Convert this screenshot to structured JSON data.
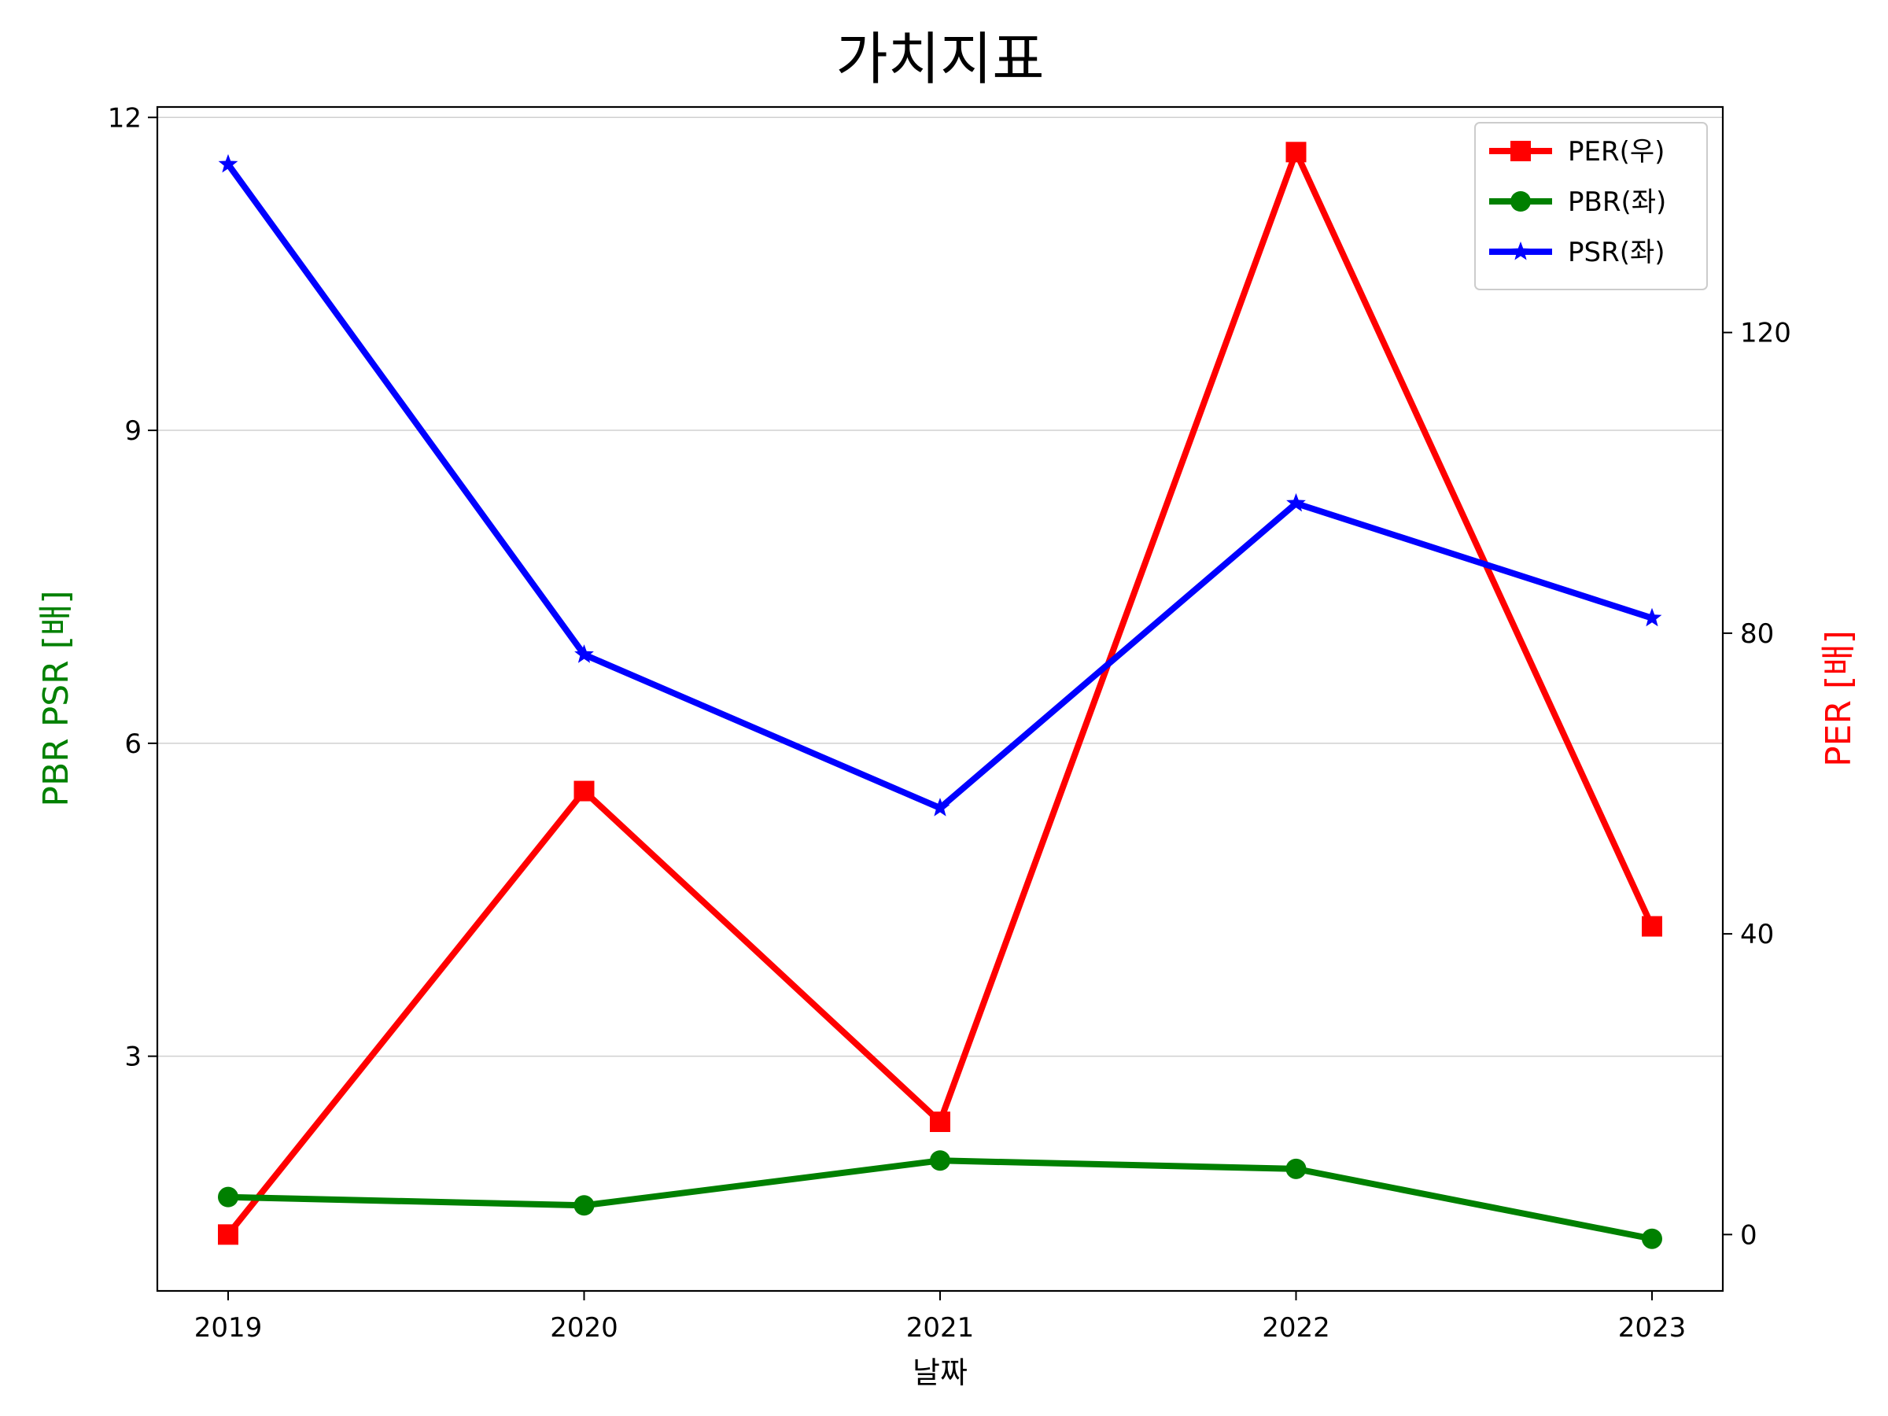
{
  "chart_data": {
    "type": "line",
    "title": "가치지표",
    "xlabel": "날짜",
    "ylabel_left": "PBR PSR [배]",
    "ylabel_right": "PER [배]",
    "categories": [
      "2019",
      "2020",
      "2021",
      "2022",
      "2023"
    ],
    "left_axis": {
      "ylim": [
        0.75,
        12.1
      ],
      "ticks": [
        3,
        6,
        9,
        12
      ],
      "color": "#008000"
    },
    "right_axis": {
      "ylim": [
        -7.5,
        150
      ],
      "ticks": [
        0,
        40,
        80,
        120
      ],
      "color": "#ff0000"
    },
    "grid": true,
    "legend_position": "top-right",
    "series": [
      {
        "name": "PER(우)",
        "axis": "right",
        "color": "#ff0000",
        "marker": "square",
        "values": [
          0,
          59,
          15,
          144,
          41
        ]
      },
      {
        "name": "PBR(좌)",
        "axis": "left",
        "color": "#008000",
        "marker": "circle",
        "values": [
          1.65,
          1.57,
          2.0,
          1.92,
          1.25
        ]
      },
      {
        "name": "PSR(좌)",
        "axis": "left",
        "color": "#0000ff",
        "marker": "star",
        "values": [
          11.55,
          6.85,
          5.38,
          8.3,
          7.2
        ]
      }
    ]
  }
}
